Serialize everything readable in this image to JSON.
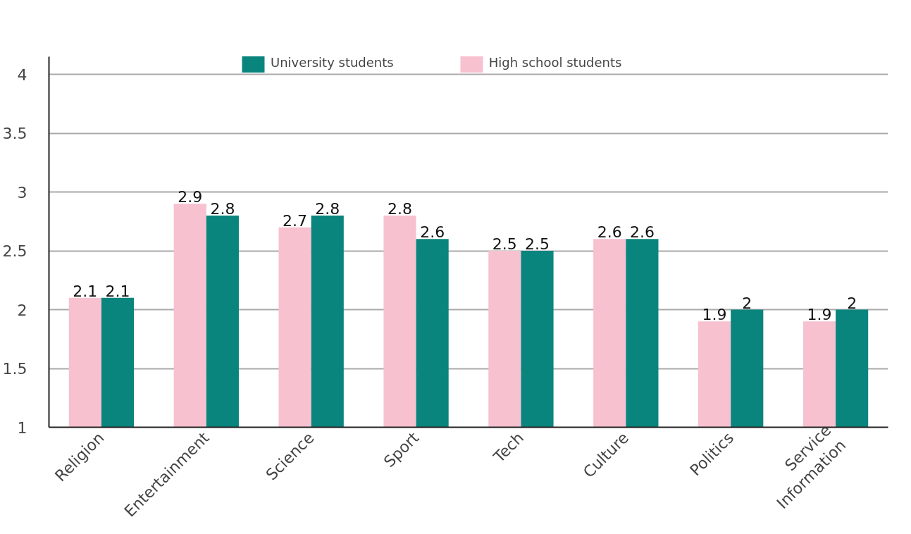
{
  "chart_data": {
    "type": "bar",
    "categories": [
      "Religion",
      "Entertainment",
      "Science",
      "Sport",
      "Tech",
      "Culture",
      "Politics",
      "Service\nInformation"
    ],
    "series": [
      {
        "name": "High school students",
        "color": "#f7c1d0",
        "values": [
          2.1,
          2.9,
          2.7,
          2.8,
          2.5,
          2.6,
          1.9,
          1.9
        ]
      },
      {
        "name": "University students",
        "color": "#0a857e",
        "values": [
          2.1,
          2.8,
          2.8,
          2.6,
          2.5,
          2.6,
          2,
          2
        ]
      }
    ],
    "ylim": [
      1,
      4.15
    ],
    "yticks": [
      1,
      1.5,
      2,
      2.5,
      3,
      3.5,
      4
    ],
    "grid": "y",
    "legend": "top",
    "data_labels": true
  }
}
